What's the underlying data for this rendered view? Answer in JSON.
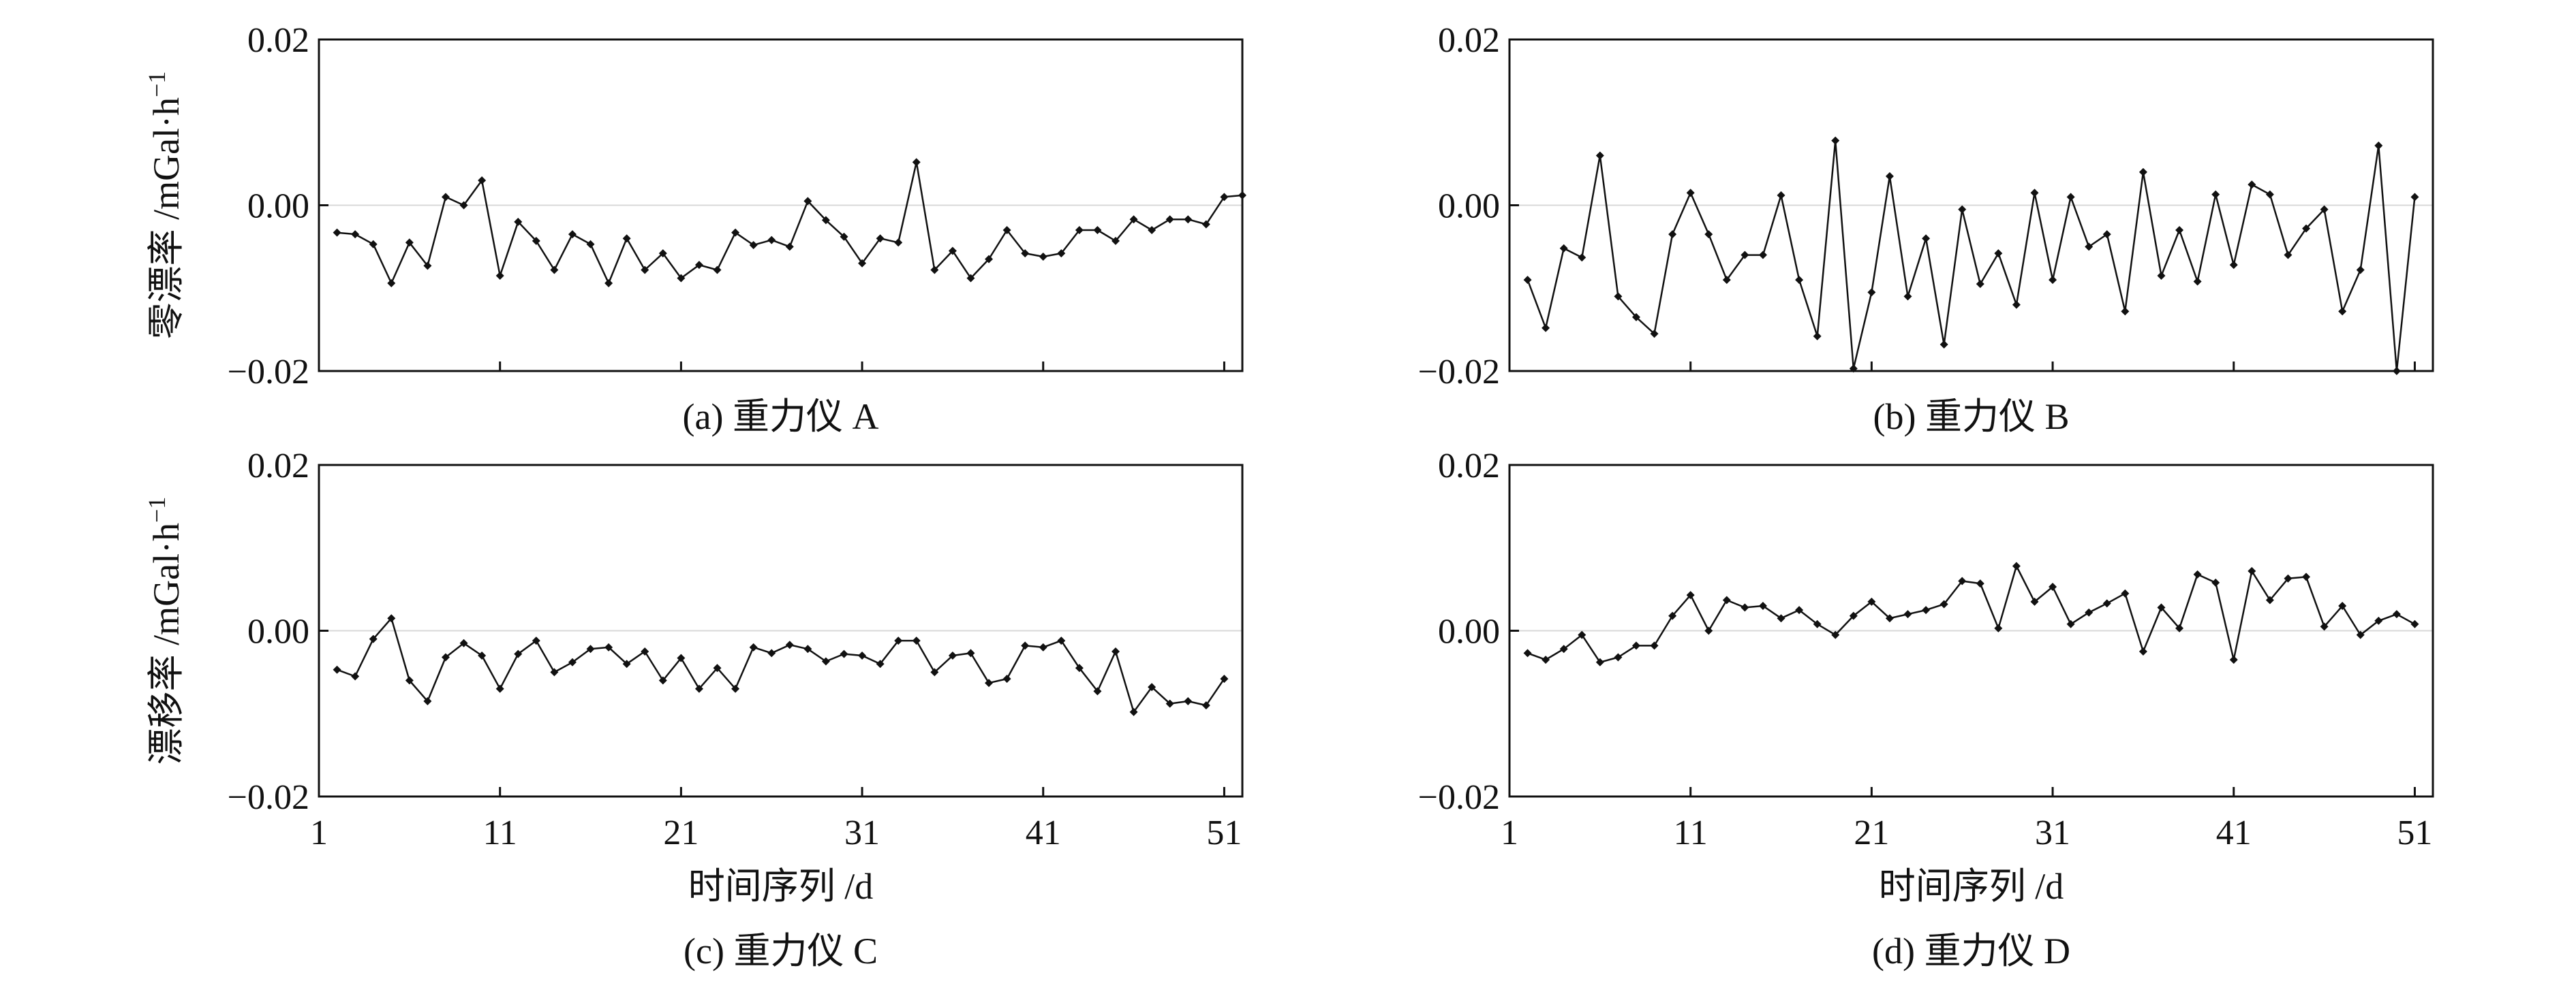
{
  "chart_data": [
    {
      "id": "a",
      "type": "line",
      "caption": "(a) 重力仪 A",
      "ylabel": "零漂率 /mGal·h",
      "ylabel_sup": "−1",
      "xlabel": "",
      "ylim": [
        -0.02,
        0.02
      ],
      "xlim": [
        1,
        52
      ],
      "yticks": [
        "0.02",
        "0.00",
        "−0.02"
      ],
      "ytick_values": [
        0.02,
        0.0,
        -0.02
      ],
      "xtick_values": [
        1,
        11,
        21,
        31,
        41,
        51
      ],
      "xticks_labeled": false,
      "zero_line": true,
      "grid": false,
      "x_start": 2,
      "values": [
        -0.0033,
        -0.0035,
        -0.0047,
        -0.0094,
        -0.0045,
        -0.0073,
        0.001,
        0.0,
        0.003,
        -0.0085,
        -0.002,
        -0.0043,
        -0.0078,
        -0.0035,
        -0.0047,
        -0.0094,
        -0.004,
        -0.0078,
        -0.0058,
        -0.0088,
        -0.0072,
        -0.0078,
        -0.0033,
        -0.0048,
        -0.0042,
        -0.005,
        0.0005,
        -0.0018,
        -0.0038,
        -0.007,
        -0.004,
        -0.0045,
        0.0052,
        -0.0078,
        -0.0055,
        -0.0088,
        -0.0065,
        -0.003,
        -0.0058,
        -0.0062,
        -0.0058,
        -0.003,
        -0.003,
        -0.0043,
        -0.0017,
        -0.003,
        -0.0017,
        -0.0017,
        -0.0023,
        0.001,
        0.0012
      ]
    },
    {
      "id": "b",
      "type": "line",
      "caption": "(b) 重力仪 B",
      "ylabel": "",
      "ylabel_sup": "",
      "xlabel": "",
      "ylim": [
        -0.02,
        0.02
      ],
      "xlim": [
        1,
        52
      ],
      "yticks": [
        "0.02",
        "0.00",
        "−0.02"
      ],
      "ytick_values": [
        0.02,
        0.0,
        -0.02
      ],
      "xtick_values": [
        1,
        11,
        21,
        31,
        41,
        51
      ],
      "xticks_labeled": false,
      "zero_line": true,
      "grid": false,
      "x_start": 2,
      "values": [
        -0.009,
        -0.0148,
        -0.0052,
        -0.0063,
        0.006,
        -0.011,
        -0.0135,
        -0.0155,
        -0.0035,
        0.0015,
        -0.0035,
        -0.009,
        -0.006,
        -0.006,
        0.0012,
        -0.009,
        -0.0158,
        0.0078,
        -0.0197,
        -0.0105,
        0.0035,
        -0.011,
        -0.004,
        -0.0168,
        -0.0005,
        -0.0095,
        -0.0058,
        -0.012,
        0.0015,
        -0.009,
        0.001,
        -0.005,
        -0.0035,
        -0.0128,
        0.004,
        -0.0085,
        -0.003,
        -0.0092,
        0.0013,
        -0.0072,
        0.0025,
        0.0013,
        -0.006,
        -0.0028,
        -0.0005,
        -0.0128,
        -0.0078,
        0.0072,
        -0.02,
        0.001
      ]
    },
    {
      "id": "c",
      "type": "line",
      "caption": "(c) 重力仪 C",
      "ylabel": "漂移率 /mGal·h",
      "ylabel_sup": "−1",
      "xlabel": "时间序列 /d",
      "ylim": [
        -0.02,
        0.02
      ],
      "xlim": [
        1,
        52
      ],
      "yticks": [
        "0.02",
        "0.00",
        "−0.02"
      ],
      "ytick_values": [
        0.02,
        0.0,
        -0.02
      ],
      "xticks": [
        "1",
        "11",
        "21",
        "31",
        "41",
        "51"
      ],
      "xtick_values": [
        1,
        11,
        21,
        31,
        41,
        51
      ],
      "xticks_labeled": true,
      "zero_line": true,
      "grid": false,
      "x_start": 2,
      "values": [
        -0.0047,
        -0.0055,
        -0.001,
        0.0015,
        -0.006,
        -0.0085,
        -0.0032,
        -0.0015,
        -0.003,
        -0.007,
        -0.0028,
        -0.0012,
        -0.005,
        -0.0038,
        -0.0022,
        -0.002,
        -0.004,
        -0.0025,
        -0.006,
        -0.0033,
        -0.007,
        -0.0045,
        -0.007,
        -0.002,
        -0.0027,
        -0.0017,
        -0.0022,
        -0.0037,
        -0.0028,
        -0.003,
        -0.004,
        -0.0012,
        -0.0012,
        -0.005,
        -0.003,
        -0.0027,
        -0.0063,
        -0.0058,
        -0.0018,
        -0.002,
        -0.0012,
        -0.0045,
        -0.0073,
        -0.0025,
        -0.0098,
        -0.0068,
        -0.0088,
        -0.0085,
        -0.009,
        -0.0058
      ]
    },
    {
      "id": "d",
      "type": "line",
      "caption": "(d) 重力仪 D",
      "ylabel": "",
      "ylabel_sup": "",
      "xlabel": "时间序列 /d",
      "ylim": [
        -0.02,
        0.02
      ],
      "xlim": [
        1,
        52
      ],
      "yticks": [
        "0.02",
        "0.00",
        "−0.02"
      ],
      "ytick_values": [
        0.02,
        0.0,
        -0.02
      ],
      "xticks": [
        "1",
        "11",
        "21",
        "31",
        "41",
        "51"
      ],
      "xtick_values": [
        1,
        11,
        21,
        31,
        41,
        51
      ],
      "xticks_labeled": true,
      "zero_line": true,
      "grid": false,
      "x_start": 2,
      "values": [
        -0.0027,
        -0.0035,
        -0.0022,
        -0.0005,
        -0.0038,
        -0.0032,
        -0.0018,
        -0.0018,
        0.0018,
        0.0043,
        0.0,
        0.0037,
        0.0028,
        0.003,
        0.0015,
        0.0025,
        0.0008,
        -0.0005,
        0.0018,
        0.0035,
        0.0015,
        0.002,
        0.0025,
        0.0032,
        0.006,
        0.0057,
        0.0003,
        0.0078,
        0.0035,
        0.0053,
        0.0008,
        0.0022,
        0.0033,
        0.0045,
        -0.0025,
        0.0028,
        0.0003,
        0.0068,
        0.0058,
        -0.0035,
        0.0072,
        0.0037,
        0.0063,
        0.0065,
        0.0005,
        0.003,
        -0.0005,
        0.0012,
        0.002,
        0.0008
      ]
    }
  ]
}
